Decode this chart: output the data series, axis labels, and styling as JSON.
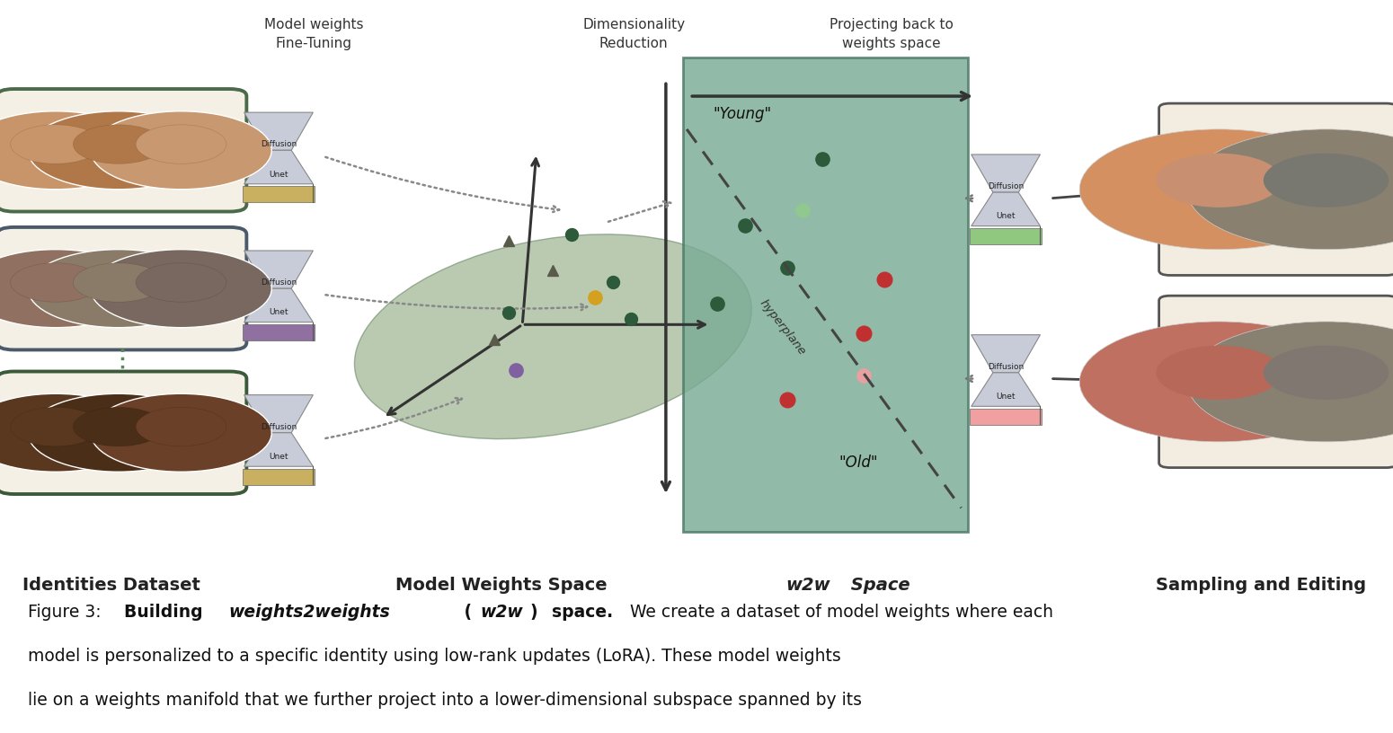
{
  "bg_color": "#ffffff",
  "fig_width": 15.5,
  "fig_height": 8.16,
  "label_model_weights": "Model weights\nFine-Tuning",
  "label_dim_reduction": "Dimensionality\nReduction",
  "label_projecting": "Projecting back to\nweights space",
  "section1": "Identities Dataset",
  "section2": "Model Weights Space",
  "section3_italic": "w2w",
  "section3_rest": " Space",
  "section4": "Sampling and Editing",
  "unet_bar_colors": [
    "#c8b060",
    "#9070a0",
    "#c8b060"
  ],
  "unet_bar_colors_right": [
    "#90c880",
    "#f0a0a0"
  ],
  "ellipse_fc": "#7a9a6a",
  "ellipse_ec": "#5a7a5a",
  "w2w_rect_fc": "#7aab95",
  "w2w_rect_ec": "#4a7a65",
  "arrow_color": "#333333",
  "dot_dark_green": "#2d5a3a",
  "dot_orange": "#d4a020",
  "dot_purple": "#8060a0",
  "dot_dark_green_w2w": "#2d5a3a",
  "dot_light_green_w2w": "#90c890",
  "dot_red_w2w": "#c03030",
  "dot_pink_w2w": "#e8a0a0",
  "face_outline_top": "#4a6a4a",
  "face_outline_mid": "#4a5a6a",
  "face_outline_bot": "#3a5a3a",
  "out_box_ec": "#555555",
  "caption_fontsize": 13.5
}
